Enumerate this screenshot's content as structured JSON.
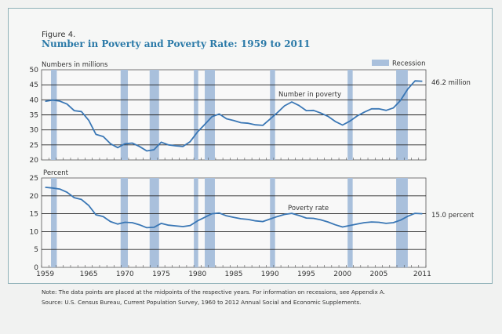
{
  "figure": {
    "label": "Figure 4.",
    "title": "Number in Poverty and Poverty Rate: 1959 to 2011",
    "note_line1": "Note: The data points are placed at the midpoints of the respective years. For information on recessions, see Appendix A.",
    "note_line2": "Source: U.S. Census Bureau, Current Population Survey, 1960 to 2012 Annual Social and Economic Supplements."
  },
  "legend": {
    "recession_label": "Recession",
    "recession_color": "#a9c0dc"
  },
  "colors": {
    "line": "#3a77b5",
    "title": "#2b7aa8",
    "frame": "#8fb1b8"
  },
  "chart_data": [
    {
      "type": "line",
      "title": "Number in poverty",
      "ylabel": "Numbers in millions",
      "ylim": [
        20,
        50
      ],
      "yticks": [
        "20",
        "25",
        "30",
        "35",
        "40",
        "45",
        "50"
      ],
      "xlim": [
        1959,
        2011
      ],
      "grid": true,
      "series_label": "Number in poverty",
      "end_label": "46.2 million",
      "x": [
        1959,
        1960,
        1961,
        1962,
        1963,
        1964,
        1965,
        1966,
        1967,
        1968,
        1969,
        1970,
        1971,
        1972,
        1973,
        1974,
        1975,
        1976,
        1977,
        1978,
        1979,
        1980,
        1981,
        1982,
        1983,
        1984,
        1985,
        1986,
        1987,
        1988,
        1989,
        1990,
        1991,
        1992,
        1993,
        1994,
        1995,
        1996,
        1997,
        1998,
        1999,
        2000,
        2001,
        2002,
        2003,
        2004,
        2005,
        2006,
        2007,
        2008,
        2009,
        2010,
        2011
      ],
      "values": [
        39.5,
        39.9,
        39.6,
        38.6,
        36.4,
        36.1,
        33.2,
        28.5,
        27.8,
        25.4,
        24.1,
        25.4,
        25.6,
        24.5,
        23.0,
        23.4,
        25.9,
        25.0,
        24.7,
        24.5,
        26.1,
        29.3,
        31.8,
        34.4,
        35.3,
        33.7,
        33.1,
        32.4,
        32.2,
        31.7,
        31.5,
        33.6,
        35.7,
        38.0,
        39.3,
        38.1,
        36.4,
        36.5,
        35.6,
        34.5,
        32.8,
        31.6,
        32.9,
        34.6,
        35.9,
        37.0,
        37.0,
        36.5,
        37.3,
        39.8,
        43.6,
        46.3,
        46.2
      ]
    },
    {
      "type": "line",
      "title": "Poverty rate",
      "ylabel": "Percent",
      "ylim": [
        0,
        25
      ],
      "yticks": [
        "0",
        "5",
        "10",
        "15",
        "20",
        "25"
      ],
      "xlim": [
        1959,
        2011
      ],
      "grid": true,
      "series_label": "Poverty rate",
      "end_label": "15.0 percent",
      "x": [
        1959,
        1960,
        1961,
        1962,
        1963,
        1964,
        1965,
        1966,
        1967,
        1968,
        1969,
        1970,
        1971,
        1972,
        1973,
        1974,
        1975,
        1976,
        1977,
        1978,
        1979,
        1980,
        1981,
        1982,
        1983,
        1984,
        1985,
        1986,
        1987,
        1988,
        1989,
        1990,
        1991,
        1992,
        1993,
        1994,
        1995,
        1996,
        1997,
        1998,
        1999,
        2000,
        2001,
        2002,
        2003,
        2004,
        2005,
        2006,
        2007,
        2008,
        2009,
        2010,
        2011
      ],
      "values": [
        22.4,
        22.2,
        21.9,
        21.0,
        19.5,
        19.0,
        17.3,
        14.7,
        14.2,
        12.8,
        12.1,
        12.6,
        12.5,
        11.9,
        11.1,
        11.2,
        12.3,
        11.8,
        11.6,
        11.4,
        11.7,
        13.0,
        14.0,
        15.0,
        15.2,
        14.4,
        14.0,
        13.6,
        13.4,
        13.0,
        12.8,
        13.5,
        14.2,
        14.8,
        15.1,
        14.5,
        13.8,
        13.7,
        13.3,
        12.7,
        11.9,
        11.3,
        11.7,
        12.1,
        12.5,
        12.7,
        12.6,
        12.3,
        12.5,
        13.2,
        14.3,
        15.1,
        15.0
      ]
    }
  ],
  "recessions": [
    [
      1960.3,
      1961.1
    ],
    [
      1969.9,
      1970.9
    ],
    [
      1973.9,
      1975.2
    ],
    [
      1980.0,
      1980.6
    ],
    [
      1981.5,
      1982.9
    ],
    [
      1990.5,
      1991.2
    ],
    [
      2001.2,
      2001.9
    ],
    [
      2007.9,
      2009.5
    ]
  ],
  "xaxis": {
    "tick_labels": [
      "1959",
      "1965",
      "1970",
      "1975",
      "1980",
      "1985",
      "1990",
      "1995",
      "2000",
      "2005",
      "2011"
    ]
  }
}
